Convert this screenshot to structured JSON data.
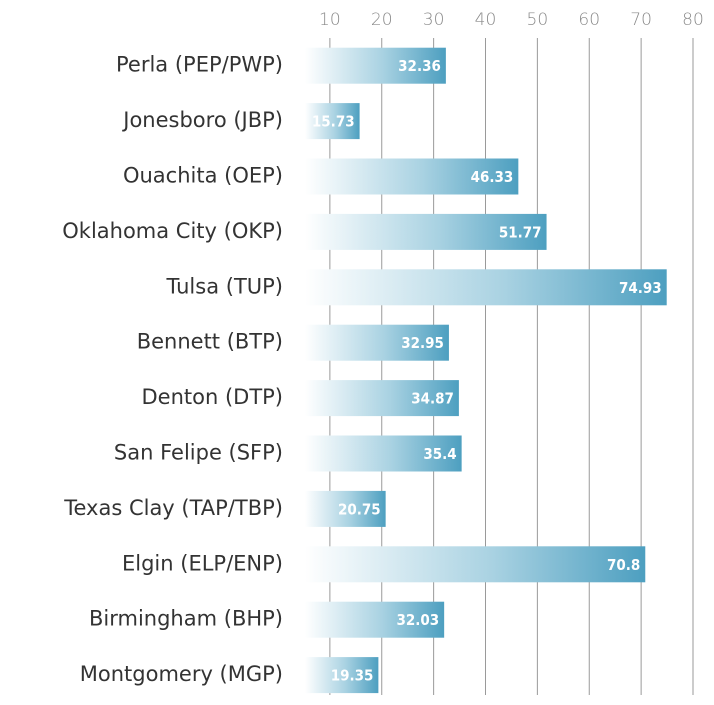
{
  "chart_data": {
    "type": "bar",
    "orientation": "horizontal",
    "categories": [
      "Perla (PEP/PWP)",
      "Jonesboro (JBP)",
      "Ouachita (OEP)",
      "Oklahoma City (OKP)",
      "Tulsa (TUP)",
      "Bennett (BTP)",
      "Denton (DTP)",
      "San Felipe (SFP)",
      "Texas Clay (TAP/TBP)",
      "Elgin (ELP/ENP)",
      "Birmingham (BHP)",
      "Montgomery (MGP)"
    ],
    "values": [
      32.36,
      15.73,
      46.33,
      51.77,
      74.93,
      32.95,
      34.87,
      35.4,
      20.75,
      70.8,
      32.03,
      19.35
    ],
    "color": "#4d9fc0",
    "xlim": [
      0,
      80
    ],
    "xticks": [
      10,
      20,
      30,
      40,
      50,
      60,
      70,
      80
    ],
    "grid": true
  }
}
